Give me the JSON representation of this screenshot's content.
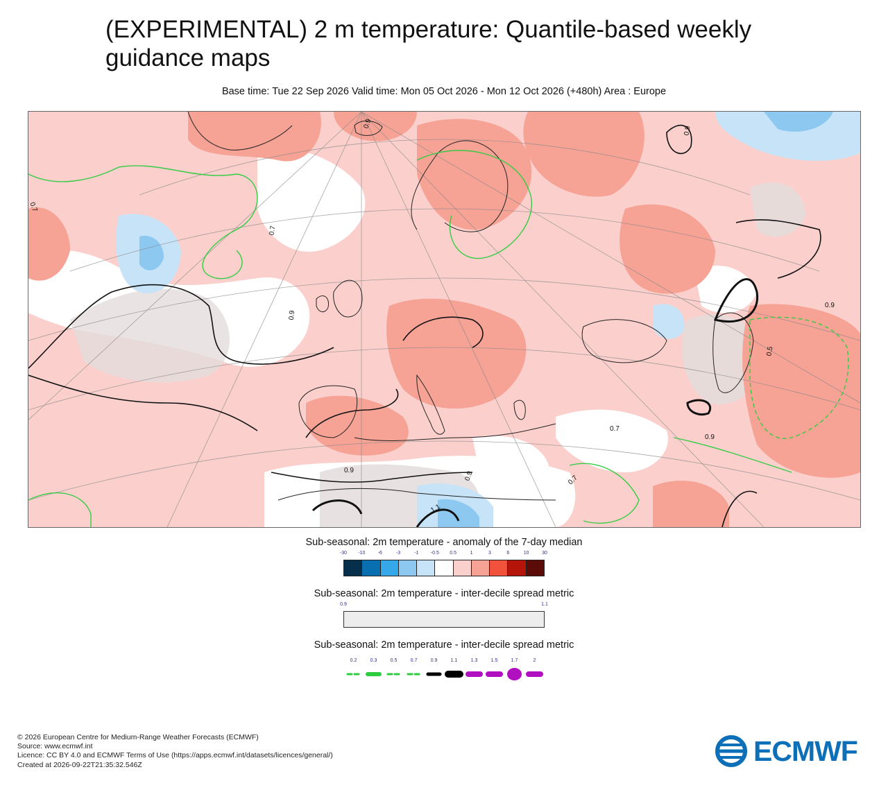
{
  "title_line1": "(EXPERIMENTAL) 2 m temperature: Quantile-based weekly",
  "title_line2": "guidance maps",
  "subtitle": "Base time: Tue 22 Sep 2026 Valid time: Mon 05 Oct 2026 - Mon 12 Oct 2026 (+480h) Area : Europe",
  "map": {
    "area": "Europe",
    "contour_labels": [
      "0.9",
      "0.7",
      "0.9",
      "0.5",
      "0.7",
      "0.9",
      "0.7",
      "0.9",
      "1.1",
      "0.9",
      "0.7",
      "0.9",
      "0.9"
    ],
    "colors": {
      "weak_warm": "#fbd0cc",
      "moderate_warm": "#f6a295",
      "weak_cold": "#c7e3f7",
      "moderate_cold": "#8cc8f0",
      "spread_fill": "#ededed"
    }
  },
  "legend_anomaly": {
    "title": "Sub-seasonal: 2m temperature - anomaly of the 7-day median",
    "ticks": [
      "-30",
      "-10",
      "-6",
      "-3",
      "-1",
      "-0.5",
      "0.5",
      "1",
      "3",
      "6",
      "10",
      "30"
    ],
    "colors": [
      "#062f4c",
      "#0a6fb0",
      "#35a8ea",
      "#8cc8f0",
      "#c7e3f7",
      "#ffffff",
      "#fbd0cc",
      "#f6a295",
      "#f2523b",
      "#b51508",
      "#5c0c08"
    ]
  },
  "legend_spread": {
    "title": "Sub-seasonal: 2m temperature - inter-decile spread metric",
    "ticks": [
      "0.9",
      "1.1"
    ],
    "color": "#ededed"
  },
  "legend_contours": {
    "title": "Sub-seasonal: 2m temperature - inter-decile spread metric",
    "ticks": [
      "0.2",
      "0.3",
      "0.5",
      "0.7",
      "0.9",
      "1.1",
      "1.3",
      "1.5",
      "1.7",
      "2"
    ],
    "colors": [
      "#2ecc40",
      "#2ecc40",
      "#2ecc40",
      "#2ecc40",
      "#000000",
      "#000000",
      "#b010c0",
      "#b010c0",
      "#b010c0",
      "#b010c0"
    ]
  },
  "footer": {
    "copyright": "© 2026 European Centre for Medium-Range Weather Forecasts (ECMWF)",
    "source": "Source: www.ecmwf.int",
    "licence": "Licence: CC BY 4.0 and ECMWF Terms of Use (https://apps.ecmwf.int/datasets/licences/general/)",
    "created": "Created at 2026-09-22T21:35:32.546Z"
  },
  "logo_text": "ECMWF",
  "logo_color": "#0d6fb8"
}
